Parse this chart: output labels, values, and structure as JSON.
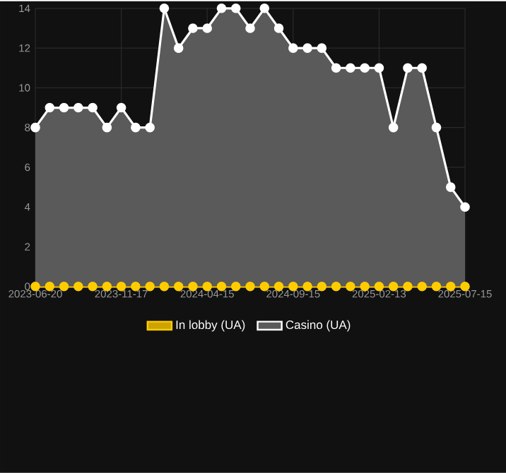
{
  "chart_data": {
    "type": "area",
    "categories": [
      "2023-06-20",
      null,
      null,
      null,
      null,
      null,
      "2023-11-17",
      null,
      null,
      null,
      null,
      null,
      "2024-04-15",
      null,
      null,
      null,
      null,
      null,
      "2024-09-15",
      null,
      null,
      null,
      null,
      null,
      "2025-02-13",
      null,
      null,
      null,
      null,
      null,
      "2025-07-15"
    ],
    "series": [
      {
        "name": "In lobby (UA)",
        "type": "line",
        "color": "#ffcc00",
        "values": [
          0,
          0,
          0,
          0,
          0,
          0,
          0,
          0,
          0,
          0,
          0,
          0,
          0,
          0,
          0,
          0,
          0,
          0,
          0,
          0,
          0,
          0,
          0,
          0,
          0,
          0,
          0,
          0,
          0,
          0,
          0
        ]
      },
      {
        "name": "Casino (UA)",
        "color": "#5a5a5a",
        "values": [
          8,
          9,
          9,
          9,
          9,
          8,
          9,
          8,
          8,
          14,
          12,
          13,
          13,
          14,
          14,
          13,
          14,
          13,
          12,
          12,
          12,
          11,
          11,
          11,
          11,
          8,
          11,
          11,
          8,
          5,
          4
        ]
      }
    ],
    "ylim": [
      0,
      14
    ],
    "yticks": [
      0,
      2,
      4,
      6,
      8,
      10,
      12,
      14
    ],
    "grid": true,
    "legend": "bottom",
    "marker": "circle"
  }
}
